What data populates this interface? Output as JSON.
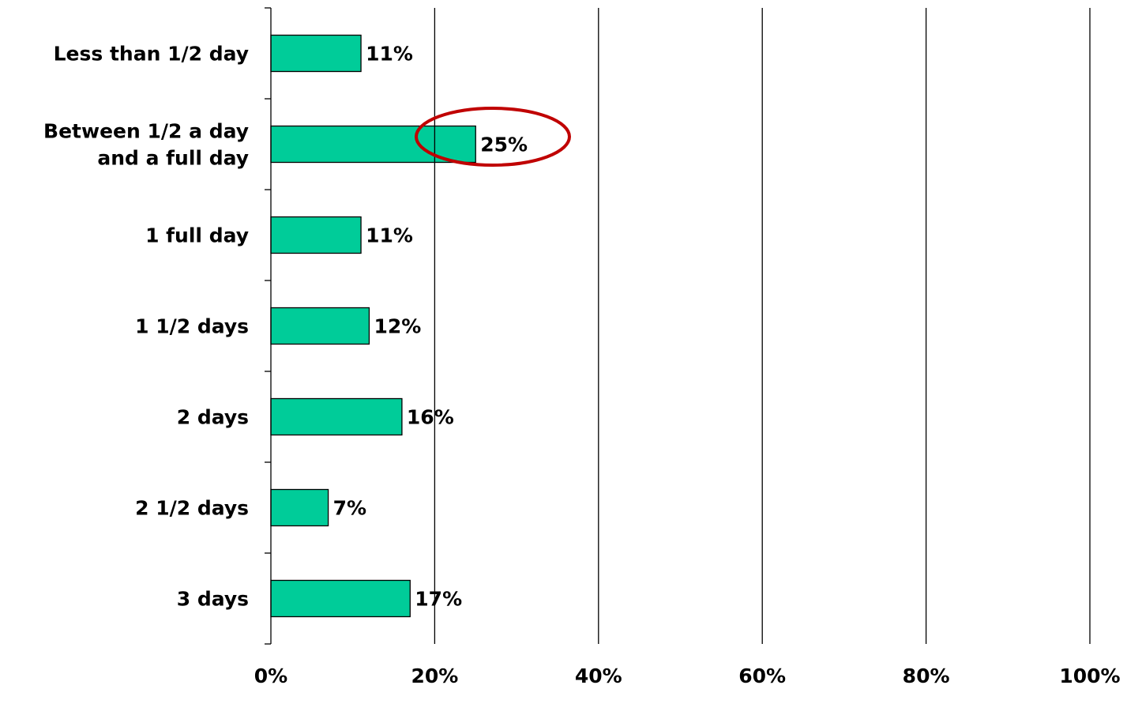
{
  "chart_data": {
    "type": "bar",
    "orientation": "horizontal",
    "categories": [
      "Less than 1/2 day",
      "Between 1/2 a day\nand a full day",
      "1 full day",
      "1 1/2 days",
      "2 days",
      "2 1/2 days",
      "3 days"
    ],
    "values": [
      11,
      25,
      11,
      12,
      16,
      7,
      17
    ],
    "value_labels": [
      "11%",
      "25%",
      "11%",
      "12%",
      "16%",
      "7%",
      "17%"
    ],
    "color": "#00cc99",
    "xlim": [
      0,
      100
    ],
    "xticks": [
      {
        "value": 0,
        "label": "0%"
      },
      {
        "value": 20,
        "label": "20%"
      },
      {
        "value": 40,
        "label": "40%"
      },
      {
        "value": 60,
        "label": "60%"
      },
      {
        "value": 80,
        "label": "80%"
      },
      {
        "value": 100,
        "label": "100%"
      }
    ],
    "grid": true
  }
}
